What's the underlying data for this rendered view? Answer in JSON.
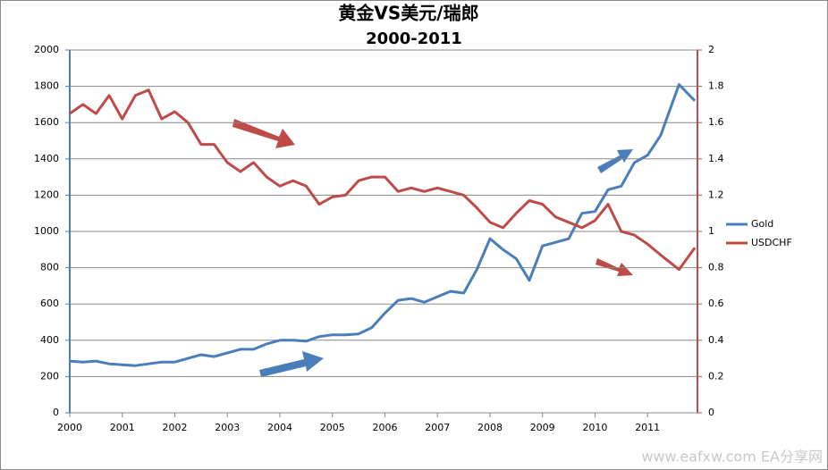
{
  "chart_data": {
    "type": "line",
    "title": "黄金VS美元/瑞郎",
    "subtitle": "2000-2011",
    "watermark": "www.eafxw.com  EA分享网",
    "x": [
      2000,
      2000.25,
      2000.5,
      2000.75,
      2001,
      2001.25,
      2001.5,
      2001.75,
      2002,
      2002.25,
      2002.5,
      2002.75,
      2003,
      2003.25,
      2003.5,
      2003.75,
      2004,
      2004.25,
      2004.5,
      2004.75,
      2005,
      2005.25,
      2005.5,
      2005.75,
      2006,
      2006.25,
      2006.5,
      2006.75,
      2007,
      2007.25,
      2007.5,
      2007.75,
      2008,
      2008.25,
      2008.5,
      2008.75,
      2009,
      2009.25,
      2009.5,
      2009.75,
      2010,
      2010.25,
      2010.5,
      2010.75,
      2011,
      2011.25,
      2011.6,
      2011.9
    ],
    "xlim": [
      2000,
      2011.95
    ],
    "xticks": [
      2000,
      2001,
      2002,
      2003,
      2004,
      2005,
      2006,
      2007,
      2008,
      2009,
      2010,
      2011
    ],
    "ylim": [
      0,
      2000
    ],
    "yticks": [
      0,
      200,
      400,
      600,
      800,
      1000,
      1200,
      1400,
      1600,
      1800,
      2000
    ],
    "y2lim": [
      0,
      2
    ],
    "y2ticks": [
      0,
      0.2,
      0.4,
      0.6,
      0.8,
      1,
      1.2,
      1.4,
      1.6,
      1.8,
      2
    ],
    "grid": true,
    "legend": "right",
    "series": [
      {
        "name": "Gold",
        "color": "#4a7ebb",
        "values": [
          285,
          280,
          285,
          270,
          265,
          260,
          270,
          280,
          280,
          300,
          320,
          310,
          330,
          350,
          350,
          380,
          400,
          400,
          395,
          420,
          430,
          430,
          435,
          470,
          550,
          620,
          630,
          610,
          640,
          670,
          660,
          790,
          960,
          900,
          850,
          730,
          920,
          940,
          960,
          1100,
          1110,
          1230,
          1250,
          1380,
          1420,
          1530,
          1810,
          1720
        ]
      },
      {
        "name": "USDCHF",
        "color": "#be4b48",
        "axis": "y2",
        "values": [
          1.65,
          1.7,
          1.65,
          1.75,
          1.62,
          1.75,
          1.78,
          1.62,
          1.66,
          1.6,
          1.48,
          1.48,
          1.38,
          1.33,
          1.38,
          1.3,
          1.25,
          1.28,
          1.25,
          1.15,
          1.19,
          1.2,
          1.28,
          1.3,
          1.3,
          1.22,
          1.24,
          1.22,
          1.24,
          1.22,
          1.2,
          1.13,
          1.05,
          1.02,
          1.1,
          1.17,
          1.15,
          1.08,
          1.05,
          1.02,
          1.06,
          1.15,
          1.0,
          0.98,
          0.93,
          0.87,
          0.79,
          0.91
        ]
      }
    ]
  }
}
